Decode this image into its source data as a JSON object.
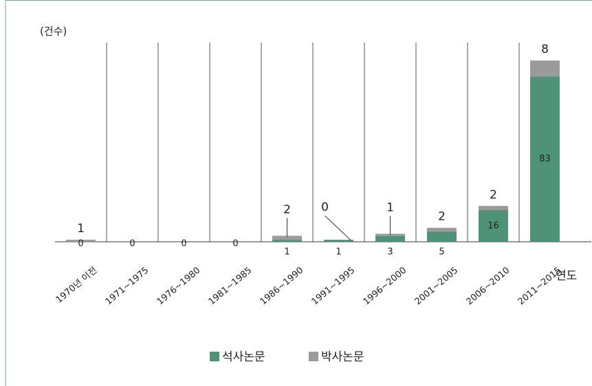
{
  "chart_data": {
    "type": "bar",
    "stacked": true,
    "y_label": "(건수)",
    "x_label": "연도",
    "categories": [
      "1970년 이전",
      "1971~1975",
      "1976~1980",
      "1981~1985",
      "1986~1990",
      "1991~1995",
      "1996~2000",
      "2001~2005",
      "2006~2010",
      "2011~2015"
    ],
    "series": [
      {
        "name": "석사논문",
        "color": "#4e9378",
        "values": [
          0,
          0,
          0,
          0,
          1,
          1,
          3,
          5,
          16,
          83
        ]
      },
      {
        "name": "박사논문",
        "color": "#9b9b9b",
        "values": [
          1,
          0,
          0,
          0,
          2,
          0,
          1,
          2,
          2,
          8
        ]
      }
    ],
    "ylim": [
      0,
      100
    ],
    "legend": "bottom"
  }
}
